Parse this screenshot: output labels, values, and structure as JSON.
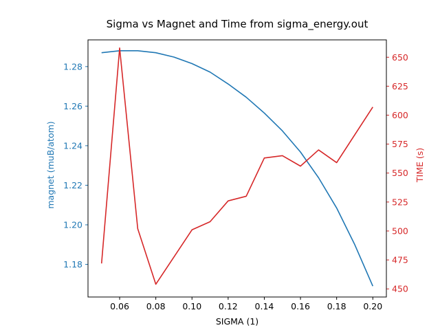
{
  "chart_data": {
    "type": "line",
    "title": "Sigma vs Magnet and Time from sigma_energy.out",
    "xlabel": "SIGMA (1)",
    "ylabel_left": "magnet (muB/atom)",
    "ylabel_right": "TIME (s)",
    "x": [
      0.05,
      0.06,
      0.07,
      0.08,
      0.09,
      0.1,
      0.11,
      0.12,
      0.13,
      0.14,
      0.15,
      0.16,
      0.17,
      0.18,
      0.19,
      0.2
    ],
    "xlim": [
      0.0425,
      0.2075
    ],
    "xticks": [
      "0.06",
      "0.08",
      "0.10",
      "0.12",
      "0.14",
      "0.16",
      "0.18",
      "0.20"
    ],
    "ylim_left": [
      1.1635,
      1.2935
    ],
    "yticks_left": [
      "1.18",
      "1.20",
      "1.22",
      "1.24",
      "1.26",
      "1.28"
    ],
    "ylim_right": [
      443,
      665
    ],
    "yticks_right": [
      "450",
      "475",
      "500",
      "525",
      "550",
      "575",
      "600",
      "625",
      "650"
    ],
    "series": [
      {
        "axis": "left",
        "color": "#1f77b4",
        "values": [
          1.287,
          1.288,
          1.288,
          1.287,
          1.2848,
          1.2815,
          1.2772,
          1.2712,
          1.2645,
          1.2565,
          1.2475,
          1.2368,
          1.2238,
          1.2085,
          1.19,
          1.169
        ]
      },
      {
        "axis": "right",
        "color": "#d62728",
        "values": [
          {
            "x": 0.05,
            "y": 472
          },
          {
            "x": 0.06,
            "y": 658
          },
          {
            "x": 0.07,
            "y": 502
          },
          {
            "x": 0.08,
            "y": 454
          },
          {
            "x": 0.1,
            "y": 501
          },
          {
            "x": 0.11,
            "y": 508
          },
          {
            "x": 0.12,
            "y": 526
          },
          {
            "x": 0.13,
            "y": 530
          },
          {
            "x": 0.14,
            "y": 563
          },
          {
            "x": 0.15,
            "y": 565
          },
          {
            "x": 0.16,
            "y": 556
          },
          {
            "x": 0.17,
            "y": 570
          },
          {
            "x": 0.18,
            "y": 559
          },
          {
            "x": 0.2,
            "y": 607
          }
        ]
      }
    ]
  }
}
